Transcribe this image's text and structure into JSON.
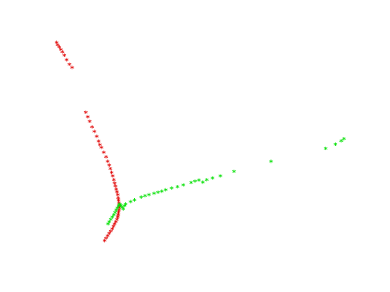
{
  "chart_data": {
    "type": "scatter",
    "title": "",
    "xlabel": "",
    "ylabel": "",
    "grid": false,
    "axes_visible": false,
    "marker": "*",
    "xlim": [
      0,
      1
    ],
    "ylim": [
      0,
      1
    ],
    "series": [
      {
        "color": "#e00000",
        "x": [
          0.145,
          0.148,
          0.152,
          0.156,
          0.16,
          0.165,
          0.171,
          0.178,
          0.185,
          0.22,
          0.225,
          0.23,
          0.236,
          0.242,
          0.248,
          0.253,
          0.256,
          0.26,
          0.266,
          0.272,
          0.276,
          0.28,
          0.283,
          0.286,
          0.289,
          0.292,
          0.294,
          0.296,
          0.298,
          0.3,
          0.302,
          0.303,
          0.304,
          0.305,
          0.306,
          0.306,
          0.305,
          0.304,
          0.303,
          0.302,
          0.3,
          0.297,
          0.294,
          0.291,
          0.288,
          0.284,
          0.28,
          0.276,
          0.272,
          0.268
        ],
        "y": [
          0.85,
          0.842,
          0.835,
          0.826,
          0.818,
          0.806,
          0.79,
          0.775,
          0.764,
          0.611,
          0.595,
          0.58,
          0.561,
          0.545,
          0.528,
          0.512,
          0.5,
          0.49,
          0.474,
          0.458,
          0.443,
          0.43,
          0.418,
          0.405,
          0.393,
          0.38,
          0.368,
          0.358,
          0.348,
          0.338,
          0.328,
          0.318,
          0.309,
          0.3,
          0.292,
          0.284,
          0.276,
          0.268,
          0.26,
          0.252,
          0.244,
          0.236,
          0.228,
          0.22,
          0.212,
          0.204,
          0.196,
          0.188,
          0.18,
          0.172
        ]
      },
      {
        "color": "#00e000",
        "x": [
          0.277,
          0.28,
          0.284,
          0.288,
          0.292,
          0.295,
          0.298,
          0.301,
          0.304,
          0.307,
          0.31,
          0.313,
          0.316,
          0.319,
          0.322,
          0.335,
          0.345,
          0.362,
          0.372,
          0.382,
          0.395,
          0.405,
          0.415,
          0.425,
          0.44,
          0.455,
          0.47,
          0.49,
          0.5,
          0.51,
          0.52,
          0.53,
          0.545,
          0.565,
          0.6,
          0.695,
          0.835,
          0.86,
          0.875,
          0.882
        ],
        "y": [
          0.228,
          0.236,
          0.244,
          0.252,
          0.26,
          0.268,
          0.276,
          0.283,
          0.29,
          0.296,
          0.292,
          0.286,
          0.28,
          0.29,
          0.296,
          0.305,
          0.311,
          0.32,
          0.325,
          0.329,
          0.333,
          0.337,
          0.341,
          0.345,
          0.351,
          0.356,
          0.362,
          0.37,
          0.375,
          0.378,
          0.372,
          0.38,
          0.386,
          0.393,
          0.408,
          0.443,
          0.487,
          0.501,
          0.513,
          0.52
        ]
      }
    ]
  }
}
